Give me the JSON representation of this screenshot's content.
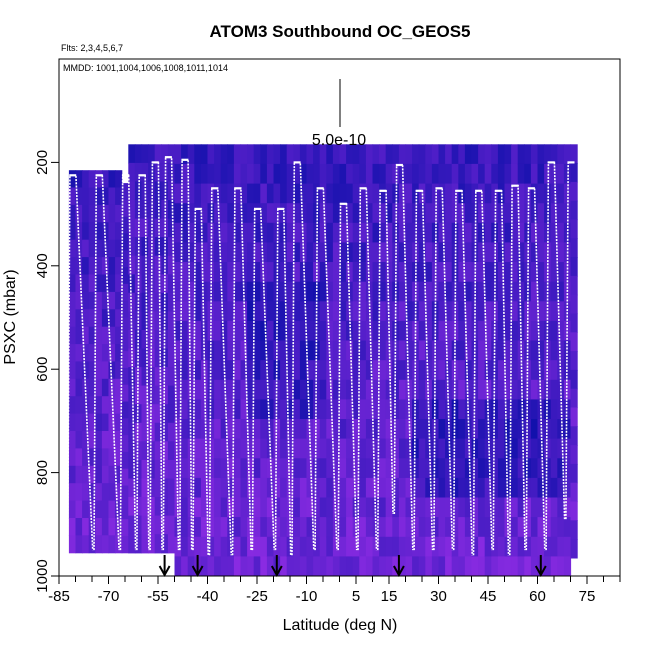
{
  "chart_data": {
    "type": "heatmap",
    "title": "ATOM3 Southbound OC_GEOS5",
    "flights_label": "Flts: 2,3,4,5,6,7",
    "dates_label": "MMDD: 1001,1004,1006,1008,1011,1014",
    "xlabel": "Latitude (deg N)",
    "ylabel": "PSXC (mbar)",
    "xlim": [
      -85,
      85
    ],
    "ylim": [
      1000,
      0
    ],
    "x_ticks": [
      "-85",
      "-70",
      "-55",
      "-40",
      "-25",
      "-10",
      "5",
      "15",
      "30",
      "45",
      "60",
      "75"
    ],
    "x_tick_values": [
      -85,
      -70,
      -55,
      -40,
      -25,
      -10,
      5,
      15,
      30,
      45,
      60,
      75
    ],
    "y_ticks": [
      "200",
      "400",
      "600",
      "800",
      "1000"
    ],
    "y_tick_values": [
      200,
      400,
      600,
      800,
      1000
    ],
    "scale_label": "5.0e-10",
    "arrow_latitudes": [
      -53,
      -43,
      -19,
      18,
      61
    ],
    "color_low": "#0a0fa8",
    "color_high": "#8a2be2",
    "profile_color": "#ffffff",
    "profiles": [
      {
        "x": -81,
        "top": 225,
        "bottom": 955
      },
      {
        "x": -73,
        "top": 225,
        "bottom": 950
      },
      {
        "x": -65,
        "top": 225,
        "bottom": 950
      },
      {
        "x": -60,
        "top": 225,
        "bottom": 950
      },
      {
        "x": -56,
        "top": 200,
        "bottom": 950
      },
      {
        "x": -52,
        "top": 190,
        "bottom": 950
      },
      {
        "x": -47,
        "top": 195,
        "bottom": 950
      },
      {
        "x": -43,
        "top": 290,
        "bottom": 950
      },
      {
        "x": -38,
        "top": 250,
        "bottom": 960
      },
      {
        "x": -31,
        "top": 250,
        "bottom": 960
      },
      {
        "x": -25,
        "top": 290,
        "bottom": 950
      },
      {
        "x": -18,
        "top": 290,
        "bottom": 950
      },
      {
        "x": -13,
        "top": 200,
        "bottom": 960
      },
      {
        "x": -6,
        "top": 250,
        "bottom": 950
      },
      {
        "x": 1,
        "top": 280,
        "bottom": 950
      },
      {
        "x": 7,
        "top": 250,
        "bottom": 950
      },
      {
        "x": 13,
        "top": 255,
        "bottom": 950
      },
      {
        "x": 18,
        "top": 205,
        "bottom": 880
      },
      {
        "x": 24,
        "top": 255,
        "bottom": 950
      },
      {
        "x": 30,
        "top": 250,
        "bottom": 950
      },
      {
        "x": 36,
        "top": 255,
        "bottom": 950
      },
      {
        "x": 42,
        "top": 255,
        "bottom": 960
      },
      {
        "x": 48,
        "top": 255,
        "bottom": 950
      },
      {
        "x": 53,
        "top": 245,
        "bottom": 960
      },
      {
        "x": 58,
        "top": 250,
        "bottom": 950
      },
      {
        "x": 64,
        "top": 200,
        "bottom": 950
      },
      {
        "x": 70,
        "top": 200,
        "bottom": 890
      }
    ]
  }
}
